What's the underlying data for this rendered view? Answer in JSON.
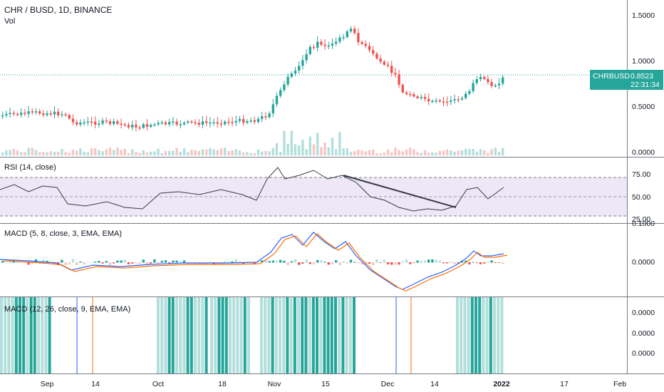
{
  "header": {
    "title": "CHR / BUSD, 1D, BINANCE",
    "volume_label": "Vol"
  },
  "price_axis": {
    "ticks": [
      "1.5000",
      "1.0000",
      "0.5000",
      "0.0000"
    ]
  },
  "current_price": {
    "symbol": "CHRBUSD",
    "value": "0.8523",
    "countdown": "22:31:34"
  },
  "rsi_pane": {
    "title": "RSI (14, close)",
    "ticks": [
      "75.00",
      "50.00",
      "25.00"
    ]
  },
  "macd1_pane": {
    "title": "MACD (5, 8, close, 3, EMA, EMA)",
    "ticks": [
      "0.1000",
      "0.0000"
    ]
  },
  "macd2_pane": {
    "title": "MACD (12, 26, close, 9, EMA, EMA)",
    "ticks": [
      "0.0000",
      "0.0000",
      "0.0000"
    ]
  },
  "time_axis": {
    "labels": [
      "Sep",
      "14",
      "Oct",
      "18",
      "Nov",
      "15",
      "Dec",
      "14",
      "2022",
      "17",
      "Feb"
    ]
  },
  "colors": {
    "up": "#26a69a",
    "down": "#ef5350",
    "rsi_band": "#7e57c2",
    "macd_line": "#2962ff",
    "signal_line": "#ff6d00",
    "hist_light": "#b2dfdb"
  }
}
